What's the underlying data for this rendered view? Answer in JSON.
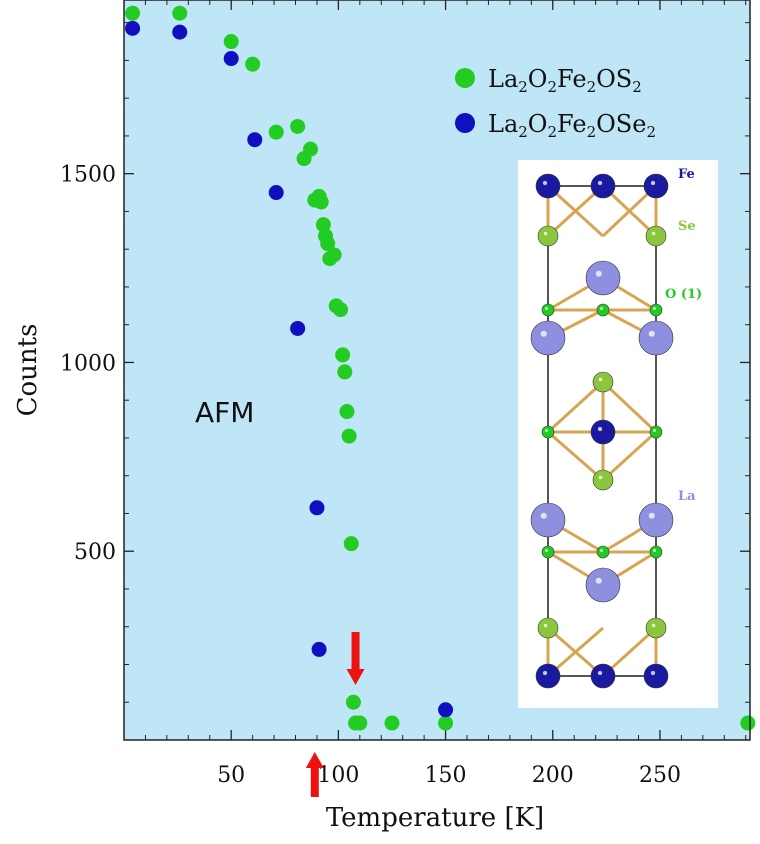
{
  "chart_data": {
    "type": "scatter",
    "xlabel": "Temperature [K]",
    "ylabel": "Counts",
    "xlim": [
      0,
      292
    ],
    "ylim": [
      0,
      1960
    ],
    "xticks": [
      50,
      100,
      150,
      200,
      250
    ],
    "yticks": [
      500,
      1000,
      1500
    ],
    "xtick_labels": [
      "50",
      "100",
      "150",
      "200",
      "250"
    ],
    "ytick_labels": [
      "500",
      "1000",
      "1500"
    ],
    "background": "#bfe6f7",
    "grid": false,
    "legend_position": "top-right",
    "series": [
      {
        "name_parts": [
          "La",
          "2",
          "O",
          "2",
          "Fe",
          "2",
          "OS",
          "2"
        ],
        "color": "#22cc22",
        "points": [
          [
            4,
            1925
          ],
          [
            26,
            1925
          ],
          [
            50,
            1850
          ],
          [
            60,
            1790
          ],
          [
            71,
            1610
          ],
          [
            81,
            1625
          ],
          [
            84,
            1540
          ],
          [
            87,
            1565
          ],
          [
            89,
            1430
          ],
          [
            91,
            1440
          ],
          [
            92,
            1425
          ],
          [
            93,
            1365
          ],
          [
            94,
            1335
          ],
          [
            95,
            1315
          ],
          [
            96,
            1275
          ],
          [
            98,
            1285
          ],
          [
            99,
            1150
          ],
          [
            101,
            1140
          ],
          [
            102,
            1020
          ],
          [
            103,
            975
          ],
          [
            104,
            870
          ],
          [
            105,
            805
          ],
          [
            106,
            520
          ],
          [
            107,
            100
          ],
          [
            108,
            45
          ],
          [
            110,
            45
          ],
          [
            125,
            45
          ],
          [
            150,
            45
          ],
          [
            291,
            45
          ]
        ]
      },
      {
        "name_parts": [
          "La",
          "2",
          "O",
          "2",
          "Fe",
          "2",
          "OSe",
          "2"
        ],
        "color": "#1010c0",
        "points": [
          [
            4,
            1885
          ],
          [
            26,
            1875
          ],
          [
            50,
            1805
          ],
          [
            61,
            1590
          ],
          [
            71,
            1450
          ],
          [
            81,
            1090
          ],
          [
            90,
            615
          ],
          [
            91,
            240
          ],
          [
            150,
            80
          ]
        ]
      }
    ],
    "annotations": [
      {
        "text": "AFM"
      }
    ],
    "arrows": [
      {
        "x": 108,
        "direction": "down",
        "color": "#ee1111"
      },
      {
        "x": 89,
        "direction": "up",
        "color": "#ee1111"
      }
    ],
    "inset": {
      "description_labels": [
        "Fe",
        "Se",
        "O (1)",
        "La"
      ],
      "label_colors": [
        "#1a1aa0",
        "#8cc63f",
        "#22cc22",
        "#8f8fe0"
      ]
    }
  }
}
